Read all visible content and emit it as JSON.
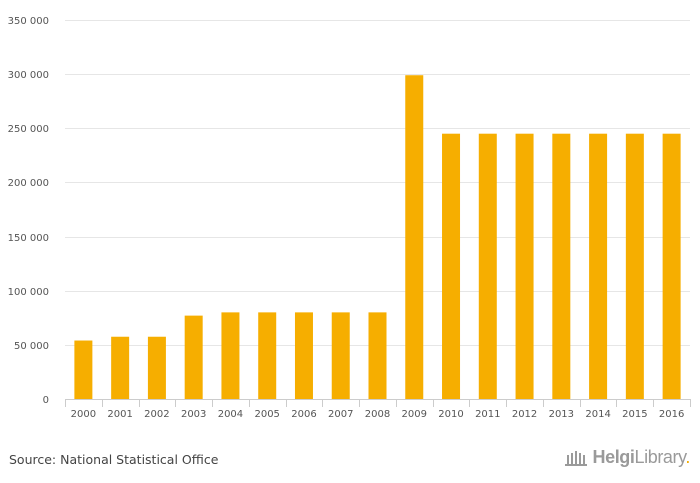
{
  "chart_data": {
    "type": "bar",
    "categories": [
      "2000",
      "2001",
      "2002",
      "2003",
      "2004",
      "2005",
      "2006",
      "2007",
      "2008",
      "2009",
      "2010",
      "2011",
      "2012",
      "2013",
      "2014",
      "2015",
      "2016"
    ],
    "values": [
      54000,
      57500,
      57500,
      77000,
      80000,
      80000,
      80000,
      80000,
      80000,
      299000,
      245000,
      245000,
      245000,
      245000,
      245000,
      245000,
      245000
    ],
    "ylim": [
      0,
      350000
    ],
    "yticks": [
      0,
      50000,
      100000,
      150000,
      200000,
      250000,
      300000,
      350000
    ],
    "ytick_labels": [
      "0",
      "50 000",
      "100 000",
      "150 000",
      "200 000",
      "250 000",
      "300 000",
      "350 000"
    ],
    "grid": true,
    "bar_color": "#f6ae00",
    "grid_color": "#e6e6e6"
  },
  "footer": {
    "source": "Source: National Statistical Office",
    "logo_part1": "Helgi",
    "logo_part2": "Library",
    "logo_dot": "."
  }
}
